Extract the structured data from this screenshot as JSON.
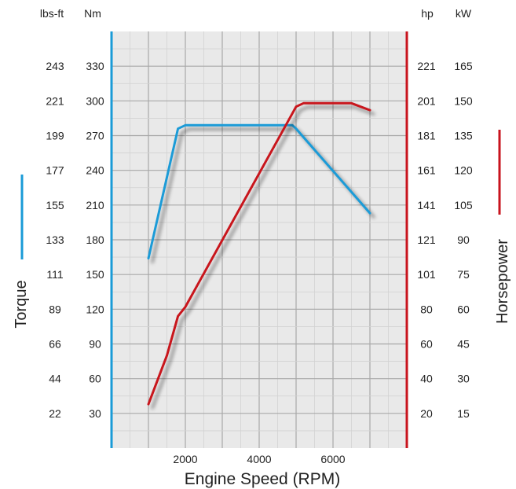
{
  "chart_data": {
    "type": "line",
    "xlabel": "Engine Speed (RPM)",
    "x_ticks": [
      "2000",
      "4000",
      "6000"
    ],
    "xlim": [
      0,
      8000
    ],
    "ylim_nm": [
      0,
      360
    ],
    "headers": {
      "left_outer": "lbs-ft",
      "left_inner": "Nm",
      "right_inner": "hp",
      "right_outer": "kW"
    },
    "left_axis_ticks": {
      "lbs_ft": [
        "243",
        "221",
        "199",
        "177",
        "155",
        "133",
        "111",
        "89",
        "66",
        "44",
        "22"
      ],
      "nm": [
        "330",
        "300",
        "270",
        "240",
        "210",
        "180",
        "150",
        "120",
        "90",
        "60",
        "30"
      ]
    },
    "right_axis_ticks": {
      "hp": [
        "221",
        "201",
        "181",
        "161",
        "141",
        "121",
        "101",
        "80",
        "60",
        "40",
        "20"
      ],
      "kw": [
        "165",
        "150",
        "135",
        "120",
        "105",
        "90",
        "75",
        "60",
        "45",
        "30",
        "15"
      ]
    },
    "grid": true,
    "series": [
      {
        "name": "Torque",
        "axis": "Nm",
        "color": "#1a9bd7",
        "points": [
          [
            1000,
            164
          ],
          [
            1800,
            276
          ],
          [
            2000,
            279
          ],
          [
            4900,
            279
          ],
          [
            5000,
            276
          ],
          [
            7000,
            203
          ]
        ]
      },
      {
        "name": "Horsepower",
        "axis": "kW",
        "color": "#c8141e",
        "points": [
          [
            1000,
            19
          ],
          [
            1500,
            40
          ],
          [
            1800,
            57
          ],
          [
            2000,
            61
          ],
          [
            5000,
            147.5
          ],
          [
            5200,
            149
          ],
          [
            6500,
            149
          ],
          [
            7000,
            146
          ]
        ]
      }
    ]
  },
  "colors": {
    "torque": "#1a9bd7",
    "horsepower": "#c8141e",
    "plot_bg": "#e9e9e9",
    "grid": "#c4c4c4"
  }
}
